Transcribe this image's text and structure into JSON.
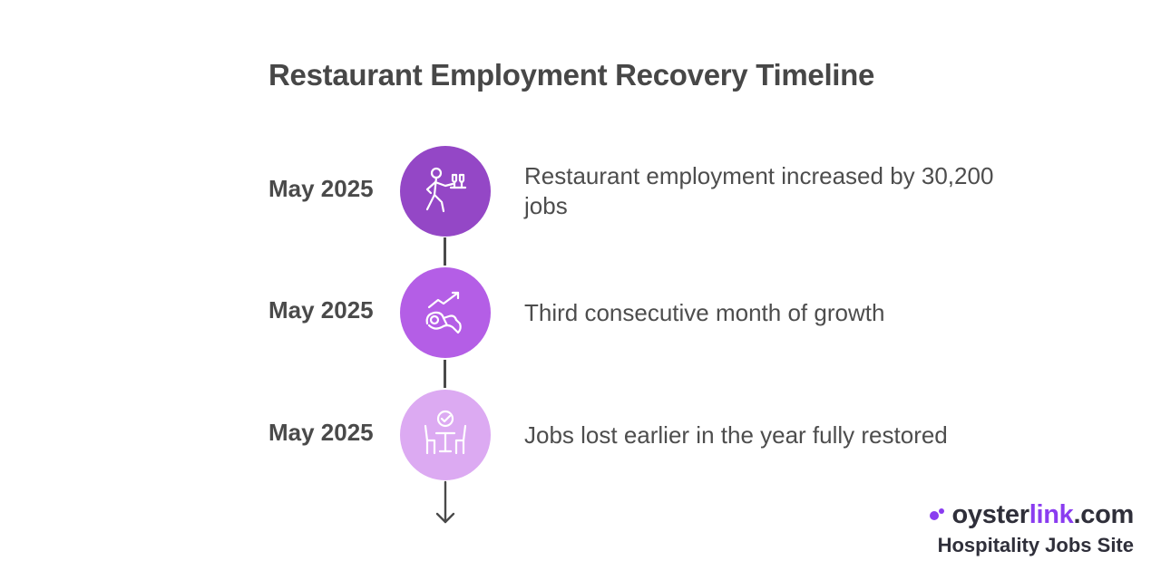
{
  "title": "Restaurant Employment Recovery Timeline",
  "timeline": {
    "items": [
      {
        "date": "May 2025",
        "description": "Restaurant employment increased by 30,200 jobs",
        "icon": "waiter-icon",
        "color": "#9447c6"
      },
      {
        "date": "May 2025",
        "description": "Third consecutive month of growth",
        "icon": "growth-recovery-icon",
        "color": "#b45ee6"
      },
      {
        "date": "May 2025",
        "description": "Jobs lost earlier in the year fully restored",
        "icon": "restored-table-icon",
        "color": "#dcaaf2"
      }
    ]
  },
  "brand": {
    "oyster": "oyster",
    "link": "link",
    "com": ".com",
    "tagline": "Hospitality Jobs Site",
    "accent": "#8a3cf0"
  }
}
